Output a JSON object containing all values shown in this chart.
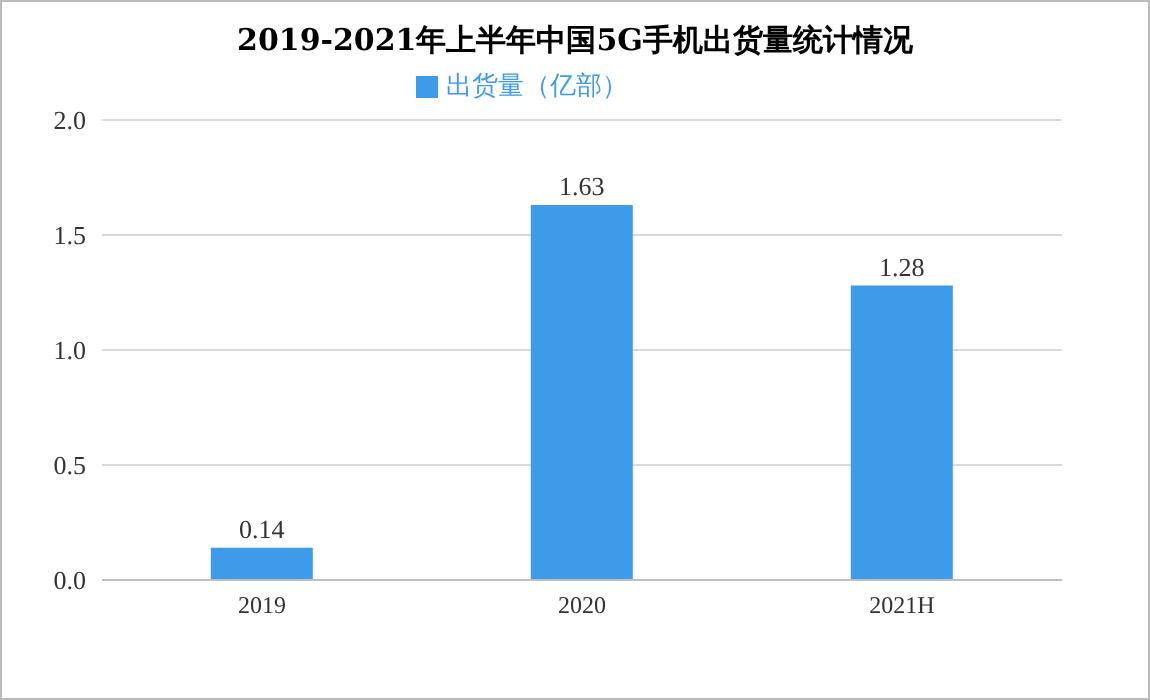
{
  "chart_data": {
    "type": "bar",
    "title": "2019-2021年上半年中国5G手机出货量统计情况",
    "categories": [
      "2019",
      "2020",
      "2021H"
    ],
    "series": [
      {
        "name": "出货量（亿部）",
        "color": "#3d9be9",
        "values": [
          0.14,
          1.63,
          1.28
        ]
      }
    ],
    "ylim": [
      0,
      2
    ],
    "yticks": [
      {
        "value": 0,
        "label": "0.0"
      },
      {
        "value": 0.5,
        "label": "0.5"
      },
      {
        "value": 1,
        "label": "1.0"
      },
      {
        "value": 1.5,
        "label": "1.5"
      },
      {
        "value": 2,
        "label": "2.0"
      }
    ],
    "grid": "y",
    "legend": "top",
    "data_labels": true
  }
}
